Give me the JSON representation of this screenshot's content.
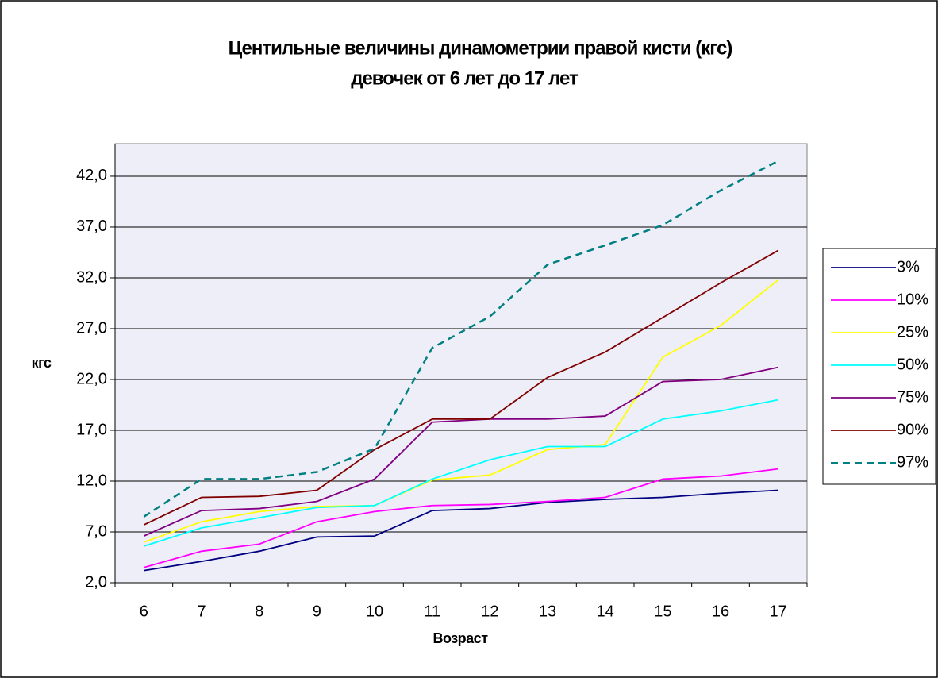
{
  "chart_data": {
    "type": "line",
    "title": [
      "Центильные величины динамометрии правой кисти  (кгс)",
      "девочек от 6 лет до 17 лет"
    ],
    "x_label": "Возраст",
    "y_label": "кгс",
    "categories": [
      "6",
      "7",
      "8",
      "9",
      "10",
      "11",
      "12",
      "13",
      "14",
      "15",
      "16",
      "17"
    ],
    "ylim": [
      2,
      45.2
    ],
    "yticks": [
      {
        "value": 2,
        "label": "2,0"
      },
      {
        "value": 7,
        "label": "7,0"
      },
      {
        "value": 12,
        "label": "12,0"
      },
      {
        "value": 17,
        "label": "17,0"
      },
      {
        "value": 22,
        "label": "22,0"
      },
      {
        "value": 27,
        "label": "27,0"
      },
      {
        "value": 32,
        "label": "32,0"
      },
      {
        "value": 37,
        "label": "37,0"
      },
      {
        "value": 42,
        "label": "42,0"
      }
    ],
    "grid": true,
    "legend": "right",
    "series": [
      {
        "name": "3%",
        "color": "#000080",
        "values": [
          3.2,
          4.1,
          5.1,
          6.5,
          6.6,
          9.1,
          9.3,
          9.9,
          10.2,
          10.4,
          10.8,
          11.1
        ]
      },
      {
        "name": "10%",
        "color": "#ff00ff",
        "values": [
          3.5,
          5.1,
          5.8,
          8.0,
          9.0,
          9.6,
          9.7,
          10.0,
          10.4,
          12.2,
          12.5,
          13.2
        ]
      },
      {
        "name": "25%",
        "color": "#ffff00",
        "values": [
          6.0,
          8.0,
          9.0,
          9.5,
          9.6,
          12.1,
          12.6,
          15.1,
          15.6,
          24.2,
          27.3,
          31.8
        ]
      },
      {
        "name": "50%",
        "color": "#00ffff",
        "values": [
          5.6,
          7.4,
          8.4,
          9.4,
          9.6,
          12.2,
          14.1,
          15.4,
          15.4,
          18.1,
          18.9,
          20.0
        ]
      },
      {
        "name": "75%",
        "color": "#800080",
        "values": [
          6.6,
          9.1,
          9.3,
          10.0,
          12.2,
          17.8,
          18.1,
          18.1,
          18.4,
          21.8,
          22.0,
          23.2
        ]
      },
      {
        "name": "90%",
        "color": "#800000",
        "values": [
          7.7,
          10.4,
          10.5,
          11.1,
          15.1,
          18.1,
          18.1,
          22.2,
          24.7,
          28.1,
          31.5,
          34.7
        ]
      },
      {
        "name": "97%",
        "color": "#008080",
        "dashed": true,
        "values": [
          8.5,
          12.2,
          12.2,
          12.9,
          15.2,
          25.1,
          28.2,
          33.3,
          35.2,
          37.2,
          40.6,
          43.5
        ]
      }
    ]
  }
}
